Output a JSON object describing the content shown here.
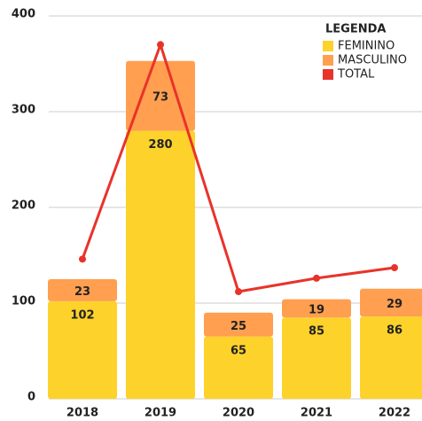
{
  "chart_data": {
    "type": "bar",
    "stacked": true,
    "categories": [
      "2018",
      "2019",
      "2020",
      "2021",
      "2022"
    ],
    "series": [
      {
        "name": "FEMININO",
        "color": "#fdd22b",
        "type": "bar",
        "values": [
          102,
          280,
          65,
          85,
          86
        ]
      },
      {
        "name": "MASCULINO",
        "color": "#ff9f4f",
        "type": "bar",
        "values": [
          23,
          73,
          25,
          19,
          29
        ]
      },
      {
        "name": "TOTAL",
        "color": "#e8332a",
        "type": "line",
        "values": [
          146,
          370,
          112,
          126,
          137
        ]
      }
    ],
    "legend_title": "LEGENDA",
    "legend": "top-right",
    "ylim": [
      0,
      400
    ],
    "yticks": [
      0,
      100,
      200,
      300,
      400
    ],
    "grid": true
  }
}
